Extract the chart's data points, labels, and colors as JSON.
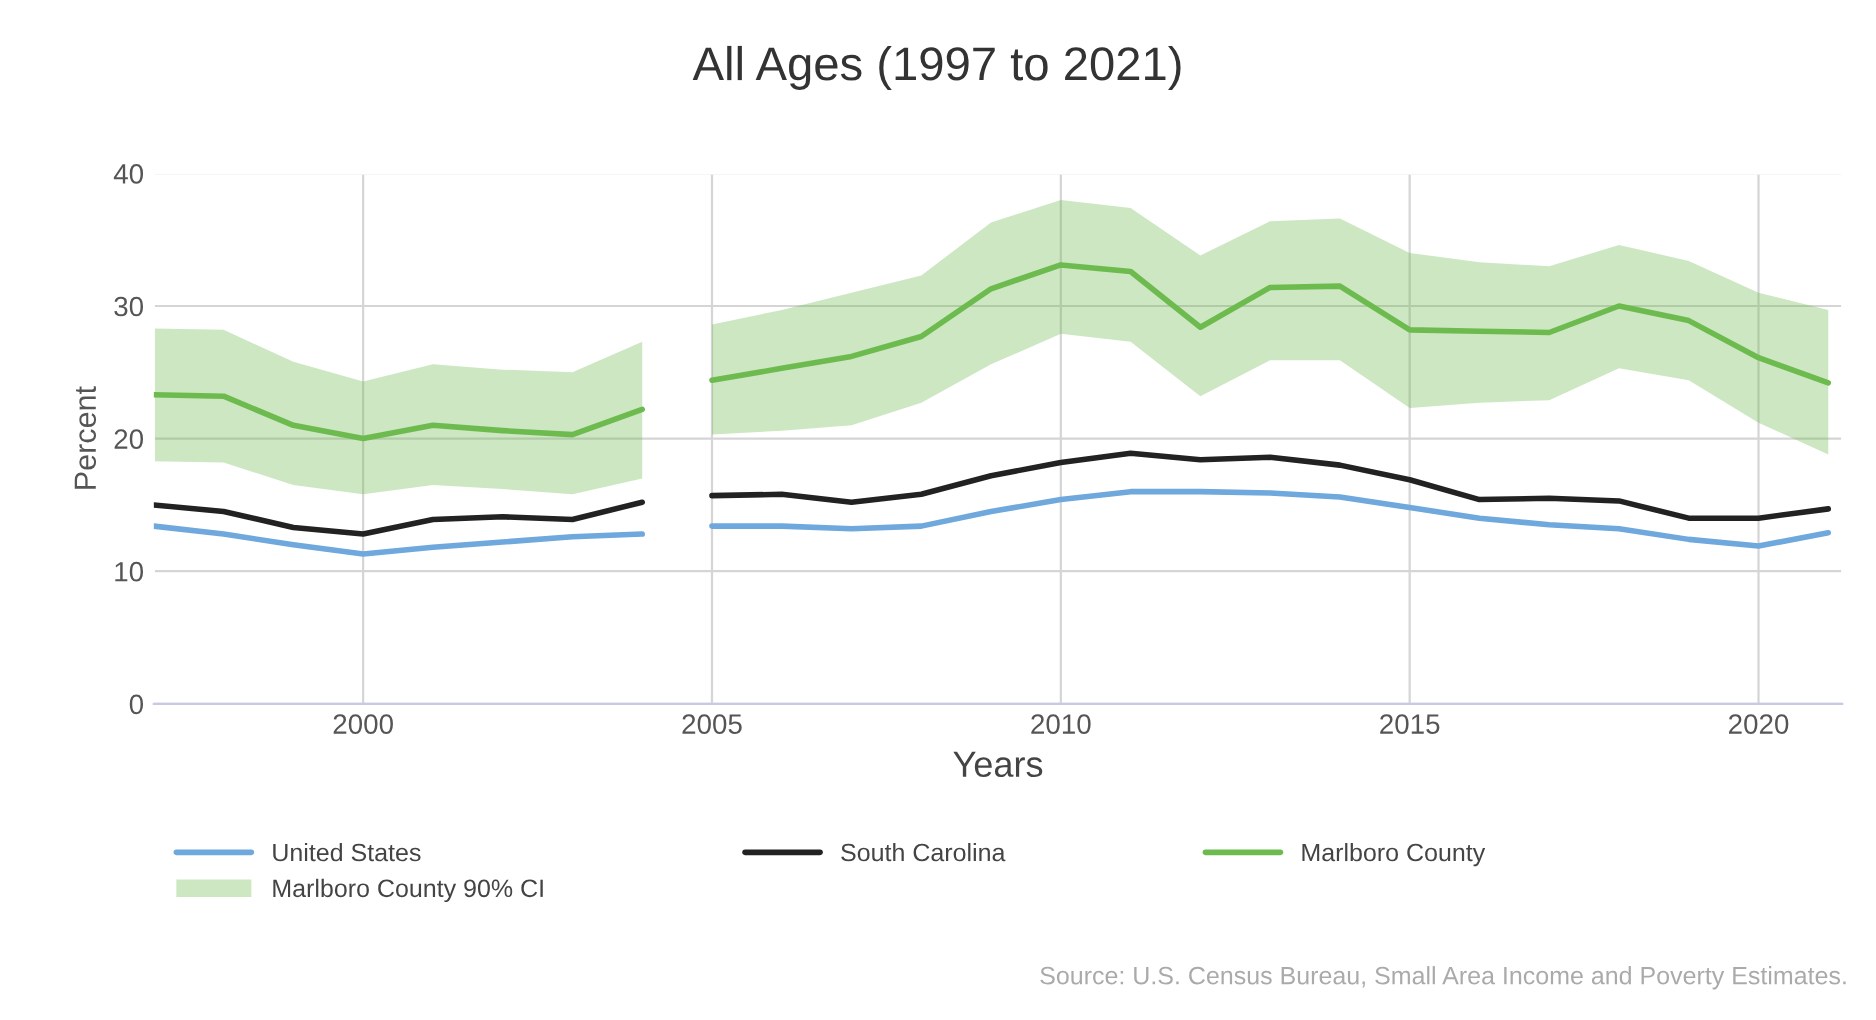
{
  "chart_data": {
    "type": "line",
    "title": "All Ages (1997 to 2021)",
    "xlabel": "Years",
    "ylabel": "Percent",
    "xlim": [
      1997,
      2021.2
    ],
    "xticks": [
      2000,
      2005,
      2010,
      2015,
      2020
    ],
    "ylim": [
      0,
      40
    ],
    "yticks": [
      0,
      10,
      20,
      30,
      40
    ],
    "grid": true,
    "legend": "bottom",
    "series": [
      {
        "name": "United States",
        "color": "#6fa8dc",
        "x": [
          1997,
          1998,
          1999,
          2000,
          2001,
          2002,
          2003,
          2004
        ],
        "values": [
          13.4,
          12.8,
          12.0,
          11.3,
          11.8,
          12.2,
          12.6,
          12.8
        ]
      },
      {
        "name": "South Carolina",
        "color": "#222222",
        "x": [
          1997,
          1998,
          1999,
          2000,
          2001,
          2002,
          2003,
          2004
        ],
        "values": [
          15.0,
          14.5,
          13.3,
          12.8,
          13.9,
          14.1,
          13.9,
          15.2
        ]
      },
      {
        "name": "Marlboro County",
        "color": "#6dbb4f",
        "x": [
          1997,
          1998,
          1999,
          2000,
          2001,
          2002,
          2003,
          2004
        ],
        "values": [
          23.3,
          23.2,
          21.0,
          20.0,
          21.0,
          20.6,
          20.3,
          22.2
        ],
        "lower": [
          18.3,
          18.2,
          16.5,
          15.8,
          16.5,
          16.2,
          15.8,
          17.0
        ],
        "upper": [
          28.3,
          28.2,
          25.8,
          24.3,
          25.6,
          25.2,
          25.0,
          27.3
        ]
      },
      {
        "color": "#6fa8dc",
        "x": [
          2005,
          2006,
          2007,
          2008,
          2009,
          2010,
          2011,
          2012,
          2013,
          2014,
          2015,
          2016,
          2017,
          2018,
          2019,
          2020,
          2021
        ],
        "values": [
          13.4,
          13.4,
          13.2,
          13.4,
          14.5,
          15.4,
          16.0,
          16.0,
          15.9,
          15.6,
          14.8,
          14.0,
          13.5,
          13.2,
          12.4,
          11.9,
          12.9
        ]
      },
      {
        "color": "#222222",
        "x": [
          2005,
          2006,
          2007,
          2008,
          2009,
          2010,
          2011,
          2012,
          2013,
          2014,
          2015,
          2016,
          2017,
          2018,
          2019,
          2020,
          2021
        ],
        "values": [
          15.7,
          15.8,
          15.2,
          15.8,
          17.2,
          18.2,
          18.9,
          18.4,
          18.6,
          18.0,
          16.9,
          15.4,
          15.5,
          15.3,
          14.0,
          14.0,
          14.7
        ]
      },
      {
        "color": "#6dbb4f",
        "x": [
          2005,
          2006,
          2007,
          2008,
          2009,
          2010,
          2011,
          2012,
          2013,
          2014,
          2015,
          2016,
          2017,
          2018,
          2019,
          2020,
          2021
        ],
        "values": [
          24.4,
          25.3,
          26.2,
          27.7,
          31.3,
          33.1,
          32.6,
          28.4,
          31.4,
          31.5,
          28.2,
          28.1,
          28.0,
          30.0,
          28.9,
          26.1,
          24.2
        ],
        "lower": [
          20.3,
          20.6,
          21.0,
          22.7,
          25.6,
          27.9,
          27.3,
          23.2,
          25.9,
          25.9,
          22.3,
          22.7,
          22.9,
          25.3,
          24.4,
          21.2,
          18.8
        ],
        "upper": [
          28.6,
          29.7,
          31.0,
          32.3,
          36.3,
          38.0,
          37.4,
          33.8,
          36.4,
          36.6,
          34.0,
          33.3,
          33.0,
          34.6,
          33.4,
          31.0,
          29.7
        ]
      }
    ],
    "annotations": [
      "Marlboro County 90% CI",
      "Source: U.S. Census Bureau, Small Area Income and Poverty Estimates."
    ]
  }
}
